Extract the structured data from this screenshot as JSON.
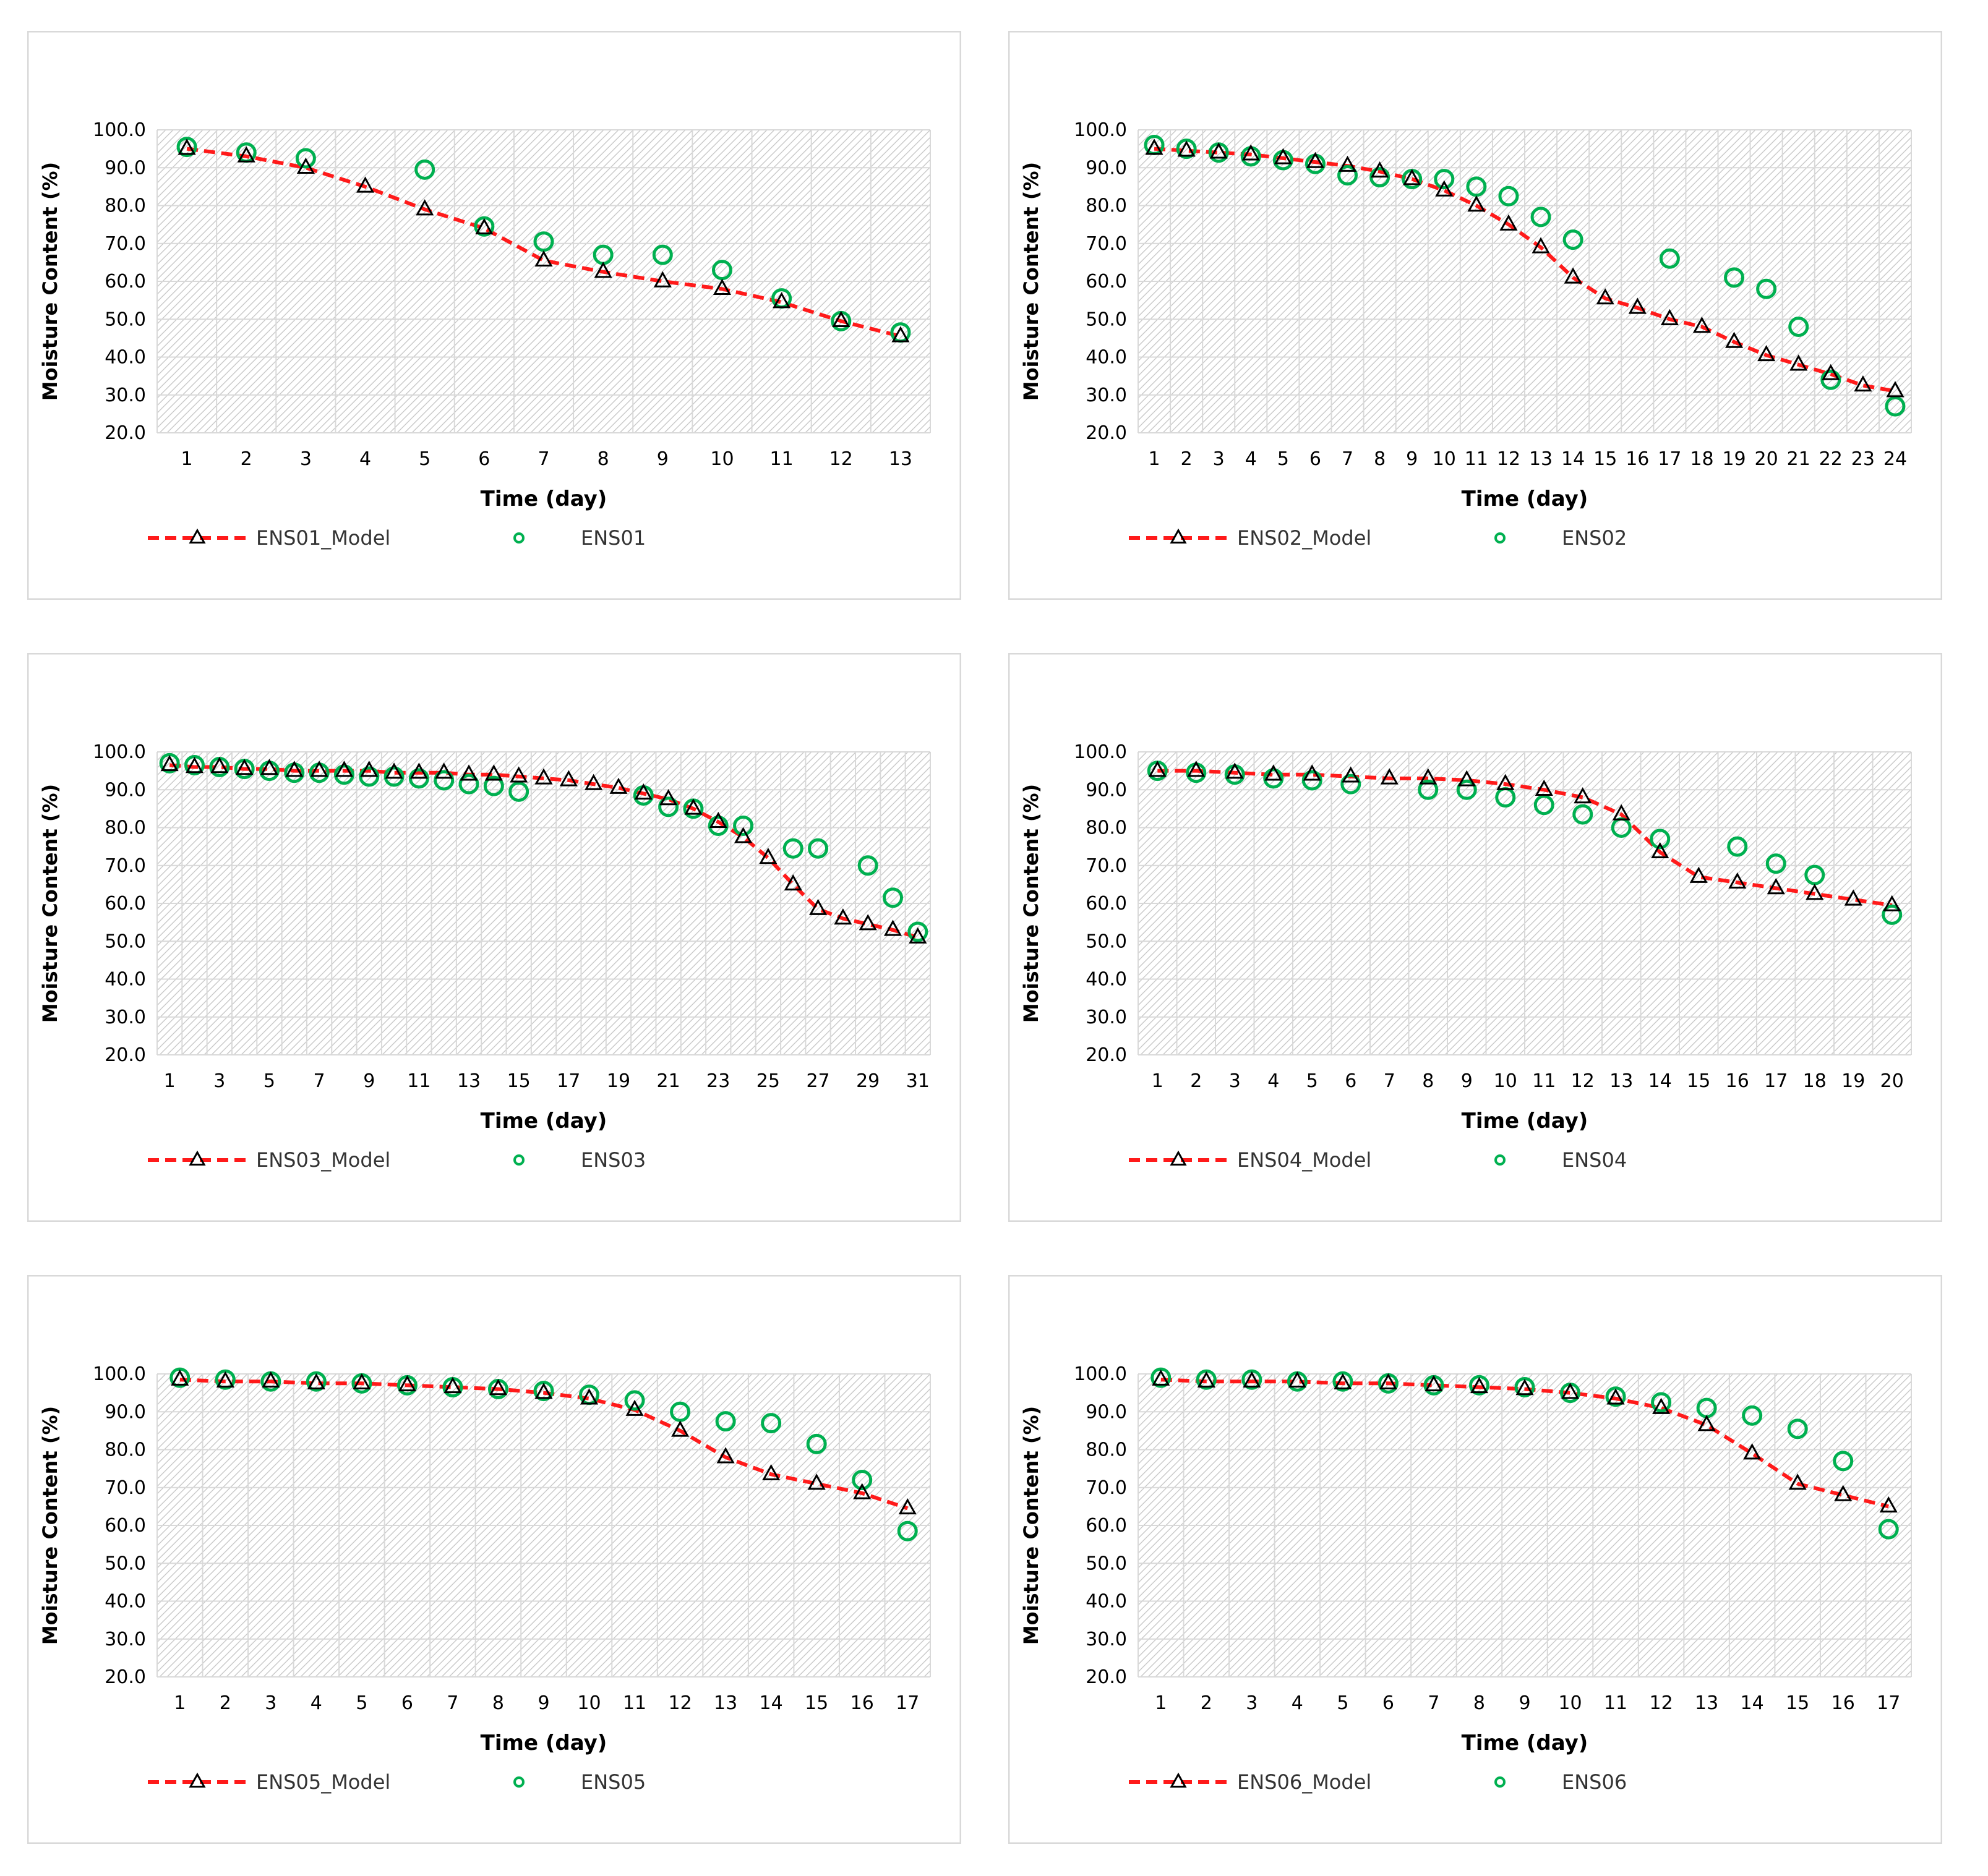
{
  "colors": {
    "model": "#ff1a1a",
    "measured": "#00b050",
    "marker_edge": "#000000",
    "grid": "#d9d9d9",
    "hatch": "#c8c8c8",
    "border": "#d9d9d9",
    "text": "#000000"
  },
  "chart_data": [
    {
      "type": "line",
      "ylabel": "Moisture Content (%)",
      "xlabel": "Time (day)",
      "ylim": [
        20,
        100
      ],
      "yticks": [
        "20.0",
        "30.0",
        "40.0",
        "50.0",
        "60.0",
        "70.0",
        "80.0",
        "90.0",
        "100.0"
      ],
      "categories": [
        "1",
        "2",
        "3",
        "4",
        "5",
        "6",
        "7",
        "8",
        "9",
        "10",
        "11",
        "12",
        "13"
      ],
      "series": [
        {
          "name": "ENS01_Model",
          "style": "dashed-line-triangle",
          "values": [
            95.0,
            93.0,
            90.0,
            85.0,
            79.0,
            74.0,
            65.5,
            62.5,
            60.0,
            58.0,
            54.5,
            49.5,
            45.5
          ]
        },
        {
          "name": "ENS01",
          "style": "circle",
          "values": [
            95.5,
            94.0,
            92.5,
            null,
            89.5,
            74.5,
            70.5,
            67.0,
            67.0,
            63.0,
            55.5,
            49.5,
            46.5
          ]
        }
      ]
    },
    {
      "type": "line",
      "ylabel": "Moisture Content (%)",
      "xlabel": "Time (day)",
      "ylim": [
        20,
        100
      ],
      "yticks": [
        "20.0",
        "30.0",
        "40.0",
        "50.0",
        "60.0",
        "70.0",
        "80.0",
        "90.0",
        "100.0"
      ],
      "categories": [
        "1",
        "2",
        "3",
        "4",
        "5",
        "6",
        "7",
        "8",
        "9",
        "10",
        "11",
        "12",
        "13",
        "14",
        "15",
        "16",
        "17",
        "18",
        "19",
        "20",
        "21",
        "22",
        "23",
        "24"
      ],
      "series": [
        {
          "name": "ENS02_Model",
          "style": "dashed-line-triangle",
          "values": [
            95.0,
            94.5,
            94.0,
            93.5,
            92.5,
            91.5,
            90.5,
            89.0,
            87.0,
            84.0,
            80.0,
            75.0,
            69.0,
            61.0,
            55.5,
            53.0,
            50.0,
            48.0,
            44.0,
            40.5,
            38.0,
            35.5,
            32.5,
            31.0
          ]
        },
        {
          "name": "ENS02",
          "style": "circle",
          "values": [
            96.0,
            95.0,
            94.0,
            93.0,
            92.0,
            91.0,
            88.0,
            87.5,
            87.0,
            87.0,
            85.0,
            82.5,
            77.0,
            71.0,
            null,
            null,
            66.0,
            null,
            61.0,
            58.0,
            48.0,
            34.0,
            null,
            27.0
          ]
        }
      ]
    },
    {
      "type": "line",
      "ylabel": "Moisture Content (%)",
      "xlabel": "Time (day)",
      "ylim": [
        20,
        100
      ],
      "yticks": [
        "20.0",
        "30.0",
        "40.0",
        "50.0",
        "60.0",
        "70.0",
        "80.0",
        "90.0",
        "100.0"
      ],
      "categories": [
        "1",
        "2",
        "3",
        "4",
        "5",
        "6",
        "7",
        "8",
        "9",
        "10",
        "11",
        "12",
        "13",
        "14",
        "15",
        "16",
        "17",
        "18",
        "19",
        "20",
        "21",
        "22",
        "23",
        "24",
        "25",
        "26",
        "27",
        "28",
        "29",
        "30",
        "31"
      ],
      "tick_labels": [
        "1",
        "3",
        "5",
        "7",
        "9",
        "11",
        "13",
        "15",
        "17",
        "19",
        "21",
        "23",
        "25",
        "27",
        "29",
        "31"
      ],
      "series": [
        {
          "name": "ENS03_Model",
          "style": "dashed-line-triangle",
          "values": [
            96.5,
            96.0,
            96.0,
            95.5,
            95.5,
            95.0,
            95.0,
            95.0,
            95.0,
            94.5,
            94.5,
            94.5,
            94.0,
            94.0,
            93.5,
            93.0,
            92.5,
            91.5,
            90.5,
            89.0,
            87.5,
            85.0,
            81.5,
            77.5,
            72.0,
            65.0,
            58.5,
            56.0,
            54.5,
            53.0,
            51.0
          ]
        },
        {
          "name": "ENS03",
          "style": "circle",
          "values": [
            97.0,
            96.5,
            96.0,
            95.5,
            95.0,
            94.5,
            94.5,
            94.0,
            93.5,
            93.5,
            93.0,
            92.5,
            91.5,
            91.0,
            89.5,
            null,
            null,
            null,
            null,
            88.5,
            85.5,
            85.0,
            80.5,
            80.5,
            null,
            74.5,
            74.5,
            null,
            70.0,
            61.5,
            52.5
          ]
        }
      ]
    },
    {
      "type": "line",
      "ylabel": "Moisture Content (%)",
      "xlabel": "Time (day)",
      "ylim": [
        20,
        100
      ],
      "yticks": [
        "20.0",
        "30.0",
        "40.0",
        "50.0",
        "60.0",
        "70.0",
        "80.0",
        "90.0",
        "100.0"
      ],
      "categories": [
        "1",
        "2",
        "3",
        "4",
        "5",
        "6",
        "7",
        "8",
        "9",
        "10",
        "11",
        "12",
        "13",
        "14",
        "15",
        "16",
        "17",
        "18",
        "19",
        "20"
      ],
      "series": [
        {
          "name": "ENS04_Model",
          "style": "dashed-line-triangle",
          "values": [
            95.0,
            95.0,
            94.5,
            94.0,
            94.0,
            93.5,
            93.0,
            93.0,
            92.5,
            91.5,
            90.0,
            88.0,
            83.5,
            73.5,
            67.0,
            65.5,
            64.0,
            62.5,
            61.0,
            59.5
          ]
        },
        {
          "name": "ENS04",
          "style": "circle",
          "values": [
            95.0,
            94.5,
            94.0,
            93.0,
            92.5,
            91.5,
            null,
            90.0,
            90.0,
            88.0,
            86.0,
            83.5,
            80.0,
            77.0,
            null,
            75.0,
            70.5,
            67.5,
            null,
            57.0
          ]
        }
      ]
    },
    {
      "type": "line",
      "ylabel": "Moisture Content (%)",
      "xlabel": "Time (day)",
      "ylim": [
        20,
        100
      ],
      "yticks": [
        "20.0",
        "30.0",
        "40.0",
        "50.0",
        "60.0",
        "70.0",
        "80.0",
        "90.0",
        "100.0"
      ],
      "categories": [
        "1",
        "2",
        "3",
        "4",
        "5",
        "6",
        "7",
        "8",
        "9",
        "10",
        "11",
        "12",
        "13",
        "14",
        "15",
        "16",
        "17"
      ],
      "series": [
        {
          "name": "ENS05_Model",
          "style": "dashed-line-triangle",
          "values": [
            98.5,
            98.0,
            98.0,
            97.5,
            97.5,
            97.0,
            96.5,
            96.0,
            95.0,
            93.5,
            90.5,
            85.0,
            78.0,
            73.5,
            71.0,
            68.5,
            64.5
          ]
        },
        {
          "name": "ENS05",
          "style": "circle",
          "values": [
            99.0,
            98.5,
            98.0,
            98.0,
            97.5,
            97.0,
            96.5,
            96.0,
            95.5,
            94.5,
            93.0,
            90.0,
            87.5,
            87.0,
            81.5,
            72.0,
            58.5
          ]
        }
      ]
    },
    {
      "type": "line",
      "ylabel": "Moisture Content (%)",
      "xlabel": "Time (day)",
      "ylim": [
        20,
        100
      ],
      "yticks": [
        "20.0",
        "30.0",
        "40.0",
        "50.0",
        "60.0",
        "70.0",
        "80.0",
        "90.0",
        "100.0"
      ],
      "categories": [
        "1",
        "2",
        "3",
        "4",
        "5",
        "6",
        "7",
        "8",
        "9",
        "10",
        "11",
        "12",
        "13",
        "14",
        "15",
        "16",
        "17"
      ],
      "series": [
        {
          "name": "ENS06_Model",
          "style": "dashed-line-triangle",
          "values": [
            98.5,
            98.0,
            98.0,
            98.0,
            97.5,
            97.5,
            97.0,
            96.5,
            96.0,
            95.0,
            93.5,
            91.0,
            86.5,
            79.0,
            71.0,
            68.0,
            65.0
          ]
        },
        {
          "name": "ENS06",
          "style": "circle",
          "values": [
            99.0,
            98.5,
            98.5,
            98.0,
            98.0,
            97.5,
            97.0,
            97.0,
            96.5,
            95.0,
            94.0,
            92.5,
            91.0,
            89.0,
            85.5,
            77.0,
            59.0
          ]
        }
      ]
    }
  ]
}
